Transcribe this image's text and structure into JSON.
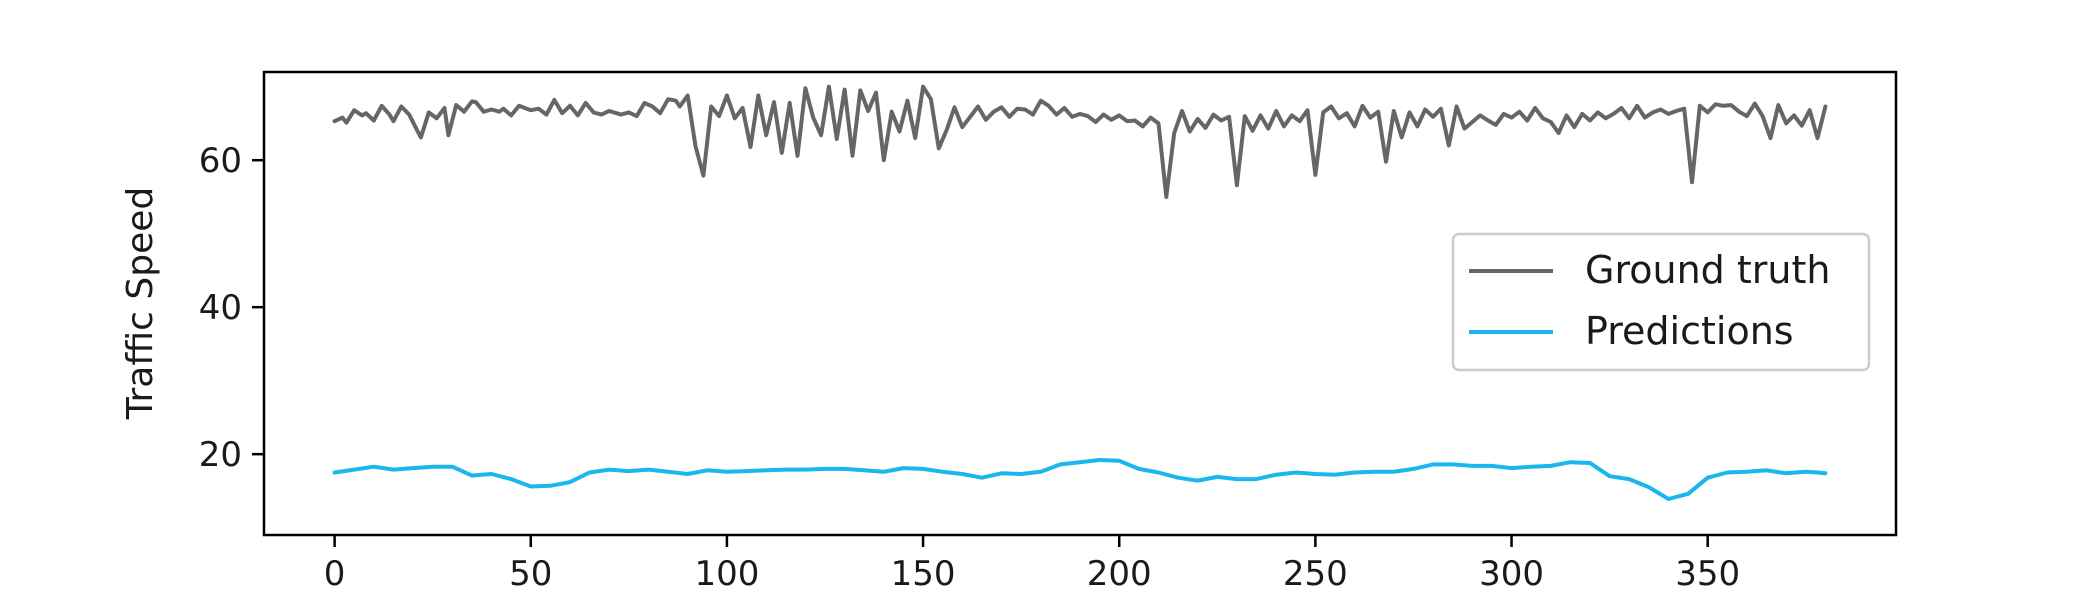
{
  "chart_data": {
    "type": "line",
    "title": "",
    "xlabel": "",
    "ylabel": "Traffic Speed",
    "xlim": [
      -18,
      398
    ],
    "ylim": [
      9,
      72
    ],
    "x_ticks": [
      0,
      50,
      100,
      150,
      200,
      250,
      300,
      350
    ],
    "y_ticks": [
      20,
      40,
      60
    ],
    "grid": false,
    "legend_position": "center-right",
    "series": [
      {
        "name": "Ground truth",
        "color": "#666666",
        "points": [
          [
            0,
            65.3
          ],
          [
            2,
            65.8
          ],
          [
            3,
            65.1
          ],
          [
            5,
            66.8
          ],
          [
            7,
            66.1
          ],
          [
            8,
            66.4
          ],
          [
            10,
            65.4
          ],
          [
            12,
            67.4
          ],
          [
            14,
            66.2
          ],
          [
            15,
            65.3
          ],
          [
            17,
            67.3
          ],
          [
            19,
            66.2
          ],
          [
            21,
            64.1
          ],
          [
            22,
            63.1
          ],
          [
            24,
            66.5
          ],
          [
            26,
            65.7
          ],
          [
            28,
            67.1
          ],
          [
            29,
            63.4
          ],
          [
            31,
            67.5
          ],
          [
            33,
            66.6
          ],
          [
            35,
            68.0
          ],
          [
            36,
            67.9
          ],
          [
            38,
            66.6
          ],
          [
            40,
            66.9
          ],
          [
            42,
            66.6
          ],
          [
            43,
            67.0
          ],
          [
            45,
            66.1
          ],
          [
            47,
            67.4
          ],
          [
            50,
            66.8
          ],
          [
            52,
            67.0
          ],
          [
            54,
            66.2
          ],
          [
            56,
            68.2
          ],
          [
            58,
            66.4
          ],
          [
            60,
            67.4
          ],
          [
            62,
            66.1
          ],
          [
            64,
            67.8
          ],
          [
            66,
            66.5
          ],
          [
            68,
            66.2
          ],
          [
            70,
            66.7
          ],
          [
            73,
            66.2
          ],
          [
            75,
            66.5
          ],
          [
            77,
            66.0
          ],
          [
            79,
            67.8
          ],
          [
            81,
            67.3
          ],
          [
            83,
            66.4
          ],
          [
            85,
            68.3
          ],
          [
            87,
            68.1
          ],
          [
            88,
            67.3
          ],
          [
            90,
            68.8
          ],
          [
            92,
            61.9
          ],
          [
            94,
            57.9
          ],
          [
            96,
            67.3
          ],
          [
            98,
            66.0
          ],
          [
            100,
            68.8
          ],
          [
            102,
            65.7
          ],
          [
            104,
            67.1
          ],
          [
            106,
            61.8
          ],
          [
            108,
            68.8
          ],
          [
            110,
            63.4
          ],
          [
            112,
            67.9
          ],
          [
            114,
            61.0
          ],
          [
            116,
            67.8
          ],
          [
            118,
            60.6
          ],
          [
            120,
            69.8
          ],
          [
            122,
            65.8
          ],
          [
            124,
            63.4
          ],
          [
            126,
            70.0
          ],
          [
            128,
            62.9
          ],
          [
            130,
            69.6
          ],
          [
            132,
            60.6
          ],
          [
            134,
            69.5
          ],
          [
            136,
            66.7
          ],
          [
            138,
            69.2
          ],
          [
            140,
            60.0
          ],
          [
            142,
            66.6
          ],
          [
            144,
            63.9
          ],
          [
            146,
            68.1
          ],
          [
            148,
            63.0
          ],
          [
            150,
            70.0
          ],
          [
            152,
            68.3
          ],
          [
            154,
            61.6
          ],
          [
            156,
            64.1
          ],
          [
            158,
            67.2
          ],
          [
            160,
            64.5
          ],
          [
            162,
            65.9
          ],
          [
            164,
            67.3
          ],
          [
            166,
            65.5
          ],
          [
            168,
            66.6
          ],
          [
            170,
            67.2
          ],
          [
            172,
            65.9
          ],
          [
            174,
            67.0
          ],
          [
            176,
            66.9
          ],
          [
            178,
            66.2
          ],
          [
            180,
            68.1
          ],
          [
            182,
            67.4
          ],
          [
            184,
            66.2
          ],
          [
            186,
            67.1
          ],
          [
            188,
            65.9
          ],
          [
            190,
            66.3
          ],
          [
            192,
            66.0
          ],
          [
            194,
            65.2
          ],
          [
            196,
            66.2
          ],
          [
            198,
            65.5
          ],
          [
            200,
            66.1
          ],
          [
            202,
            65.3
          ],
          [
            204,
            65.4
          ],
          [
            206,
            64.6
          ],
          [
            208,
            65.8
          ],
          [
            210,
            65.0
          ],
          [
            212,
            55.0
          ],
          [
            214,
            63.7
          ],
          [
            216,
            66.7
          ],
          [
            218,
            63.9
          ],
          [
            220,
            65.6
          ],
          [
            222,
            64.4
          ],
          [
            224,
            66.2
          ],
          [
            226,
            65.4
          ],
          [
            228,
            65.9
          ],
          [
            230,
            56.6
          ],
          [
            232,
            66.0
          ],
          [
            234,
            64.0
          ],
          [
            236,
            66.1
          ],
          [
            238,
            64.3
          ],
          [
            240,
            66.7
          ],
          [
            242,
            64.6
          ],
          [
            244,
            66.1
          ],
          [
            246,
            65.3
          ],
          [
            248,
            66.8
          ],
          [
            250,
            58.0
          ],
          [
            252,
            66.5
          ],
          [
            254,
            67.3
          ],
          [
            256,
            65.7
          ],
          [
            258,
            66.4
          ],
          [
            260,
            64.6
          ],
          [
            262,
            67.4
          ],
          [
            264,
            65.8
          ],
          [
            266,
            66.6
          ],
          [
            268,
            59.8
          ],
          [
            270,
            66.7
          ],
          [
            272,
            63.1
          ],
          [
            274,
            66.5
          ],
          [
            276,
            64.6
          ],
          [
            278,
            66.9
          ],
          [
            280,
            65.9
          ],
          [
            282,
            67.0
          ],
          [
            284,
            62.0
          ],
          [
            286,
            67.3
          ],
          [
            288,
            64.3
          ],
          [
            290,
            65.2
          ],
          [
            292,
            66.1
          ],
          [
            294,
            65.4
          ],
          [
            296,
            64.8
          ],
          [
            298,
            66.3
          ],
          [
            300,
            65.8
          ],
          [
            302,
            66.6
          ],
          [
            304,
            65.4
          ],
          [
            306,
            67.1
          ],
          [
            308,
            65.7
          ],
          [
            310,
            65.2
          ],
          [
            312,
            63.7
          ],
          [
            314,
            66.1
          ],
          [
            316,
            64.5
          ],
          [
            318,
            66.3
          ],
          [
            320,
            65.4
          ],
          [
            322,
            66.5
          ],
          [
            324,
            65.7
          ],
          [
            326,
            66.3
          ],
          [
            328,
            67.1
          ],
          [
            330,
            65.7
          ],
          [
            332,
            67.4
          ],
          [
            334,
            65.8
          ],
          [
            336,
            66.5
          ],
          [
            338,
            66.9
          ],
          [
            340,
            66.3
          ],
          [
            342,
            66.7
          ],
          [
            344,
            67.0
          ],
          [
            346,
            57.0
          ],
          [
            348,
            67.4
          ],
          [
            350,
            66.5
          ],
          [
            352,
            67.6
          ],
          [
            354,
            67.4
          ],
          [
            356,
            67.5
          ],
          [
            358,
            66.6
          ],
          [
            360,
            66.0
          ],
          [
            362,
            67.7
          ],
          [
            364,
            66.0
          ],
          [
            366,
            63.0
          ],
          [
            368,
            67.5
          ],
          [
            370,
            65.0
          ],
          [
            372,
            66.1
          ],
          [
            374,
            64.7
          ],
          [
            376,
            66.8
          ],
          [
            378,
            63.0
          ],
          [
            380,
            67.3
          ]
        ]
      },
      {
        "name": "Predictions",
        "color": "#1ab6ee",
        "points": [
          [
            0,
            17.5
          ],
          [
            5,
            17.9
          ],
          [
            10,
            18.3
          ],
          [
            15,
            17.9
          ],
          [
            20,
            18.1
          ],
          [
            25,
            18.3
          ],
          [
            30,
            18.3
          ],
          [
            35,
            17.1
          ],
          [
            40,
            17.3
          ],
          [
            45,
            16.6
          ],
          [
            50,
            15.6
          ],
          [
            55,
            15.7
          ],
          [
            60,
            16.2
          ],
          [
            65,
            17.5
          ],
          [
            70,
            17.9
          ],
          [
            75,
            17.7
          ],
          [
            80,
            17.9
          ],
          [
            85,
            17.6
          ],
          [
            90,
            17.3
          ],
          [
            95,
            17.8
          ],
          [
            100,
            17.6
          ],
          [
            105,
            17.7
          ],
          [
            110,
            17.8
          ],
          [
            115,
            17.9
          ],
          [
            120,
            17.9
          ],
          [
            125,
            18.0
          ],
          [
            130,
            18.0
          ],
          [
            135,
            17.8
          ],
          [
            140,
            17.6
          ],
          [
            145,
            18.1
          ],
          [
            150,
            18.0
          ],
          [
            155,
            17.6
          ],
          [
            160,
            17.3
          ],
          [
            165,
            16.8
          ],
          [
            170,
            17.4
          ],
          [
            175,
            17.3
          ],
          [
            180,
            17.6
          ],
          [
            185,
            18.6
          ],
          [
            190,
            18.9
          ],
          [
            195,
            19.2
          ],
          [
            200,
            19.1
          ],
          [
            205,
            18.0
          ],
          [
            210,
            17.5
          ],
          [
            215,
            16.8
          ],
          [
            220,
            16.4
          ],
          [
            225,
            16.9
          ],
          [
            230,
            16.6
          ],
          [
            235,
            16.6
          ],
          [
            240,
            17.2
          ],
          [
            245,
            17.5
          ],
          [
            250,
            17.3
          ],
          [
            255,
            17.2
          ],
          [
            260,
            17.5
          ],
          [
            265,
            17.6
          ],
          [
            270,
            17.6
          ],
          [
            275,
            18.0
          ],
          [
            280,
            18.6
          ],
          [
            285,
            18.6
          ],
          [
            290,
            18.4
          ],
          [
            295,
            18.4
          ],
          [
            300,
            18.1
          ],
          [
            305,
            18.3
          ],
          [
            310,
            18.4
          ],
          [
            315,
            18.9
          ],
          [
            320,
            18.8
          ],
          [
            325,
            17.0
          ],
          [
            330,
            16.6
          ],
          [
            335,
            15.5
          ],
          [
            340,
            13.9
          ],
          [
            345,
            14.6
          ],
          [
            350,
            16.8
          ],
          [
            355,
            17.5
          ],
          [
            360,
            17.6
          ],
          [
            365,
            17.8
          ],
          [
            370,
            17.4
          ],
          [
            375,
            17.6
          ],
          [
            378,
            17.5
          ],
          [
            380,
            17.4
          ]
        ]
      }
    ]
  }
}
